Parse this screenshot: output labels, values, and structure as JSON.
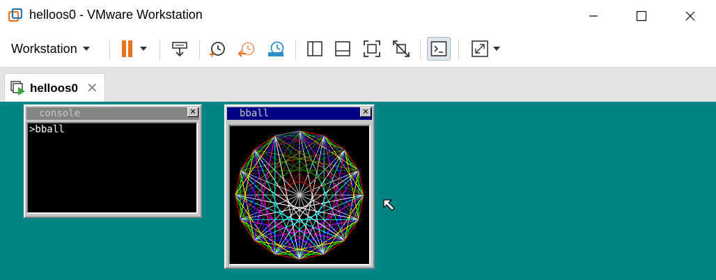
{
  "window": {
    "title": "helloos0 - VMware Workstation",
    "app_icon": "vmware-icon",
    "controls": [
      "minimize-icon",
      "maximize-icon",
      "close-icon"
    ]
  },
  "toolbar": {
    "workstation_menu_label": "Workstation",
    "buttons": [
      "pause-icon",
      "send-ctrl-alt-del-icon",
      "snapshot-take-icon",
      "snapshot-revert-icon",
      "snapshot-manager-icon",
      "library-sidebar-icon",
      "thumbnail-bar-icon",
      "full-screen-icon",
      "unity-icon",
      "console-view-icon",
      "stretch-guest-icon"
    ]
  },
  "tabs": [
    {
      "label": "helloos0",
      "icon": "vm-tab-icon",
      "close_icon": "close-icon"
    }
  ],
  "guest": {
    "background_color": "#008484",
    "console_window": {
      "title": "console",
      "prompt_line": ">bball"
    },
    "bball_window": {
      "title": "bball",
      "title_bar_color": "#000084"
    },
    "mouse_cursor": "arrow-cursor-icon"
  },
  "colors": {
    "pause_accent": "#e8731e",
    "snapshot_blue": "#2a8fc9",
    "revert_orange": "#f0a070"
  }
}
